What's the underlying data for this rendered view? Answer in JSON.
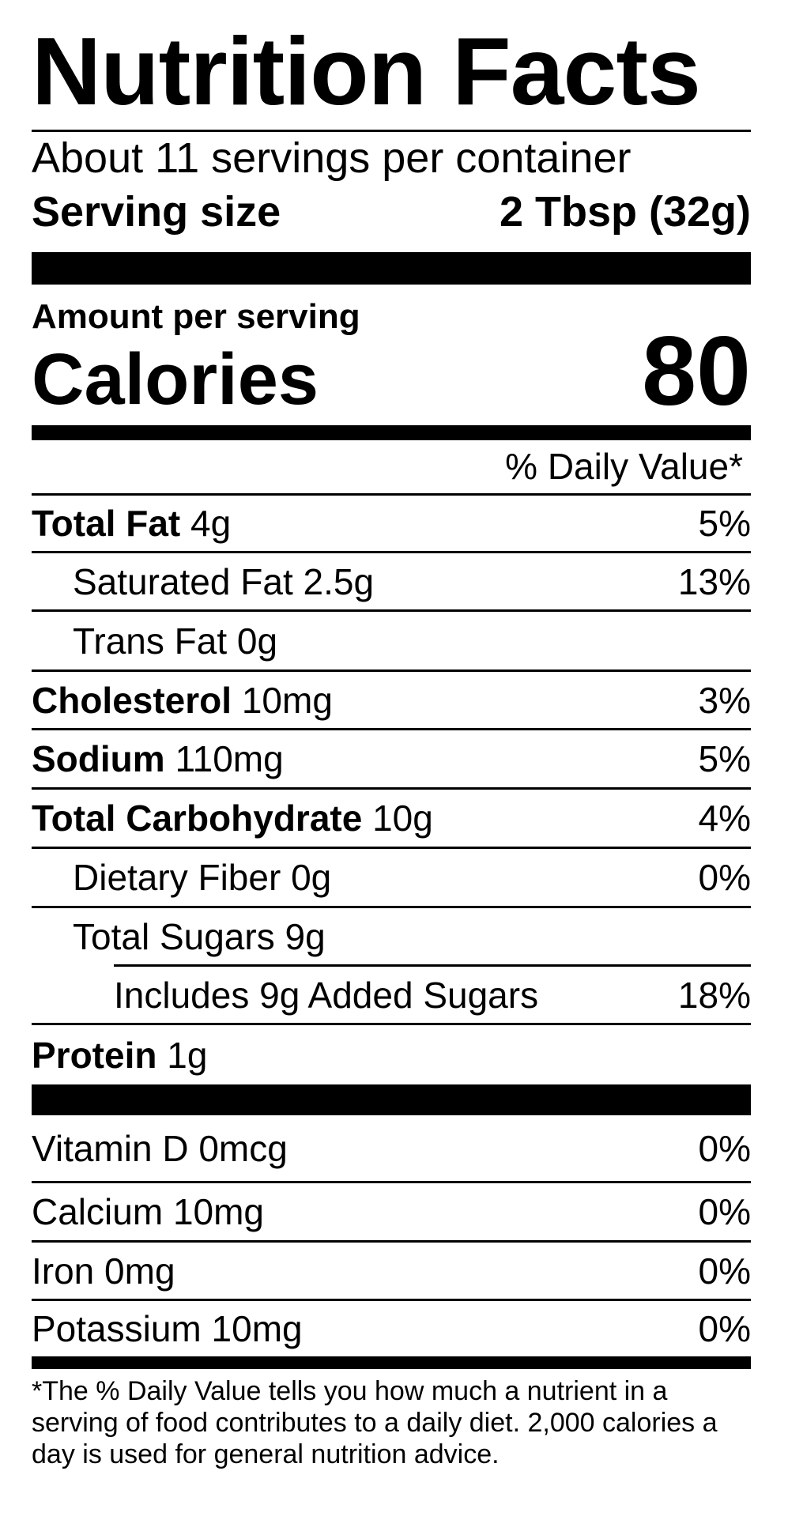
{
  "title": "Nutrition Facts",
  "servings_per_container": "About 11 servings per container",
  "serving_size": {
    "label": "Serving size",
    "value": "2 Tbsp (32g)"
  },
  "amount_per_serving": "Amount per serving",
  "calories": {
    "label": "Calories",
    "value": "80"
  },
  "daily_value_header": "% Daily Value*",
  "nutrients": [
    {
      "name": "Total Fat",
      "amount": "4g",
      "dv": "5%"
    },
    {
      "name": "Saturated Fat",
      "amount": "2.5g",
      "dv": "13%"
    },
    {
      "name": "Trans Fat",
      "amount": "0g",
      "dv": ""
    },
    {
      "name": "Cholesterol",
      "amount": "10mg",
      "dv": "3%"
    },
    {
      "name": "Sodium",
      "amount": "110mg",
      "dv": "5%"
    },
    {
      "name": "Total Carbohydrate",
      "amount": "10g",
      "dv": "4%"
    },
    {
      "name": "Dietary Fiber",
      "amount": "0g",
      "dv": "0%"
    },
    {
      "name": "Total Sugars",
      "amount": "9g",
      "dv": ""
    },
    {
      "name": "Includes 9g Added Sugars",
      "amount": "",
      "dv": "18%"
    },
    {
      "name": "Protein",
      "amount": "1g",
      "dv": ""
    }
  ],
  "micronutrients": [
    {
      "name": "Vitamin D",
      "amount": "0mcg",
      "dv": "0%"
    },
    {
      "name": "Calcium",
      "amount": "10mg",
      "dv": "0%"
    },
    {
      "name": "Iron",
      "amount": "0mg",
      "dv": "0%"
    },
    {
      "name": "Potassium",
      "amount": "10mg",
      "dv": "0%"
    }
  ],
  "footnote": "*The % Daily Value tells you how much a nutrient in a serving of food contributes to a daily diet. 2,000 calories a day is used for general nutrition advice."
}
